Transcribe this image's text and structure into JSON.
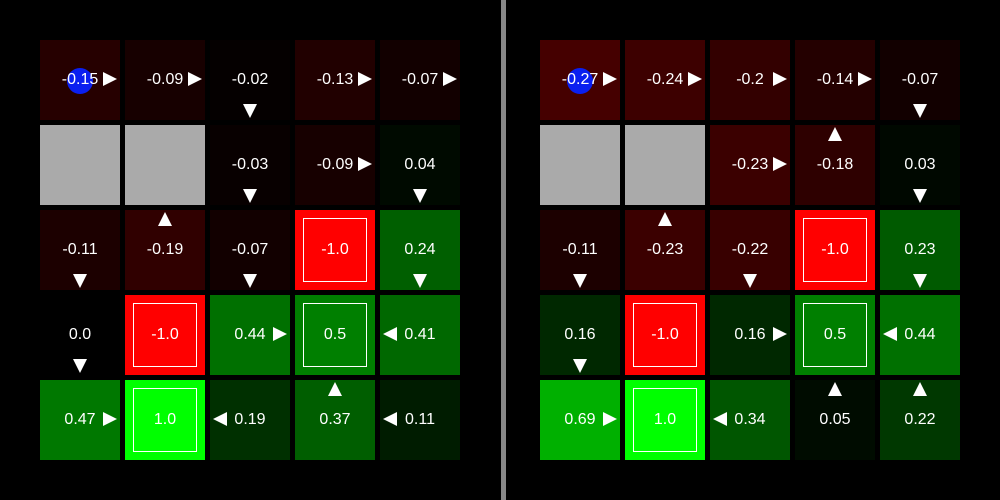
{
  "colors": {
    "background": "#000000",
    "wall": "#aaaaaa",
    "divider": "#888888",
    "agent": "#0a1ff0",
    "text": "#ffffff"
  },
  "panels": [
    {
      "id": "left",
      "cells": [
        [
          {
            "type": "normal",
            "value": "-0.15",
            "arrow": "right",
            "agent": true,
            "color": "#260000"
          },
          {
            "type": "normal",
            "value": "-0.09",
            "arrow": "right",
            "color": "#170000"
          },
          {
            "type": "normal",
            "value": "-0.02",
            "arrow": "down",
            "color": "#050000"
          },
          {
            "type": "normal",
            "value": "-0.13",
            "arrow": "right",
            "color": "#210000"
          },
          {
            "type": "normal",
            "value": "-0.07",
            "arrow": "right",
            "color": "#120000"
          }
        ],
        [
          {
            "type": "wall"
          },
          {
            "type": "wall"
          },
          {
            "type": "normal",
            "value": "-0.03",
            "arrow": "down",
            "color": "#080000"
          },
          {
            "type": "normal",
            "value": "-0.09",
            "arrow": "right",
            "color": "#170000"
          },
          {
            "type": "normal",
            "value": "0.04",
            "arrow": "down",
            "color": "#000a00"
          }
        ],
        [
          {
            "type": "normal",
            "value": "-0.11",
            "arrow": "down",
            "color": "#1c0000"
          },
          {
            "type": "normal",
            "value": "-0.19",
            "arrow": "up",
            "color": "#300000"
          },
          {
            "type": "normal",
            "value": "-0.07",
            "arrow": "down",
            "color": "#120000"
          },
          {
            "type": "terminal",
            "value": "-1.0",
            "color": "#ff0000"
          },
          {
            "type": "normal",
            "value": "0.24",
            "arrow": "down",
            "color": "#005f00"
          }
        ],
        [
          {
            "type": "normal",
            "value": "0.0",
            "arrow": "down",
            "color": "#000000"
          },
          {
            "type": "terminal",
            "value": "-1.0",
            "color": "#ff0000"
          },
          {
            "type": "normal",
            "value": "0.44",
            "arrow": "right",
            "color": "#007000"
          },
          {
            "type": "terminal",
            "value": "0.5",
            "color": "#007f00"
          },
          {
            "type": "normal",
            "value": "0.41",
            "arrow": "left",
            "color": "#006800"
          }
        ],
        [
          {
            "type": "normal",
            "value": "0.47",
            "arrow": "right",
            "color": "#007800"
          },
          {
            "type": "terminal",
            "value": "1.0",
            "color": "#00ff00"
          },
          {
            "type": "normal",
            "value": "0.19",
            "arrow": "left",
            "color": "#003000"
          },
          {
            "type": "normal",
            "value": "0.37",
            "arrow": "up",
            "color": "#005e00"
          },
          {
            "type": "normal",
            "value": "0.11",
            "arrow": "left",
            "color": "#001c00"
          }
        ]
      ]
    },
    {
      "id": "right",
      "cells": [
        [
          {
            "type": "normal",
            "value": "-0.27",
            "arrow": "right",
            "agent": true,
            "color": "#450000"
          },
          {
            "type": "normal",
            "value": "-0.24",
            "arrow": "right",
            "color": "#3d0000"
          },
          {
            "type": "normal",
            "value": "-0.2",
            "arrow": "right",
            "color": "#330000"
          },
          {
            "type": "normal",
            "value": "-0.14",
            "arrow": "right",
            "color": "#240000"
          },
          {
            "type": "normal",
            "value": "-0.07",
            "arrow": "down",
            "color": "#120000"
          }
        ],
        [
          {
            "type": "wall"
          },
          {
            "type": "wall"
          },
          {
            "type": "normal",
            "value": "-0.23",
            "arrow": "right",
            "color": "#3b0000"
          },
          {
            "type": "normal",
            "value": "-0.18",
            "arrow": "up",
            "color": "#2e0000"
          },
          {
            "type": "normal",
            "value": "0.03",
            "arrow": "down",
            "color": "#000800"
          }
        ],
        [
          {
            "type": "normal",
            "value": "-0.11",
            "arrow": "down",
            "color": "#1c0000"
          },
          {
            "type": "normal",
            "value": "-0.23",
            "arrow": "up",
            "color": "#3b0000"
          },
          {
            "type": "normal",
            "value": "-0.22",
            "arrow": "down",
            "color": "#380000"
          },
          {
            "type": "terminal",
            "value": "-1.0",
            "color": "#ff0000"
          },
          {
            "type": "normal",
            "value": "0.23",
            "arrow": "down",
            "color": "#005a00"
          }
        ],
        [
          {
            "type": "normal",
            "value": "0.16",
            "arrow": "down",
            "color": "#002800"
          },
          {
            "type": "terminal",
            "value": "-1.0",
            "color": "#ff0000"
          },
          {
            "type": "normal",
            "value": "0.16",
            "arrow": "right",
            "color": "#002800"
          },
          {
            "type": "terminal",
            "value": "0.5",
            "color": "#007f00"
          },
          {
            "type": "normal",
            "value": "0.44",
            "arrow": "left",
            "color": "#007000"
          }
        ],
        [
          {
            "type": "normal",
            "value": "0.69",
            "arrow": "right",
            "color": "#00b000"
          },
          {
            "type": "terminal",
            "value": "1.0",
            "color": "#00ff00"
          },
          {
            "type": "normal",
            "value": "0.34",
            "arrow": "left",
            "color": "#005600"
          },
          {
            "type": "normal",
            "value": "0.05",
            "arrow": "up",
            "color": "#000c00"
          },
          {
            "type": "normal",
            "value": "0.22",
            "arrow": "up",
            "color": "#003800"
          }
        ]
      ]
    }
  ]
}
